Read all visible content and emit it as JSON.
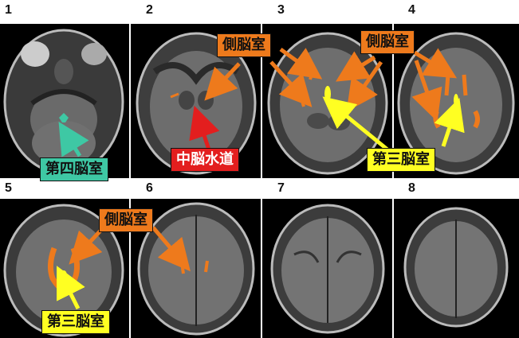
{
  "panel_numbers": [
    "1",
    "2",
    "3",
    "4",
    "5",
    "6",
    "7",
    "8"
  ],
  "labels": {
    "lateral_ventricle": "側脳室",
    "fourth_ventricle": "第四脳室",
    "cerebral_aqueduct": "中脳水道",
    "third_ventricle": "第三脳室"
  },
  "colors": {
    "lateral_ventricle": "#ee7a1c",
    "fourth_ventricle": "#3ec8a4",
    "cerebral_aqueduct": "#e31e1e",
    "third_ventricle": "#ffff22"
  }
}
